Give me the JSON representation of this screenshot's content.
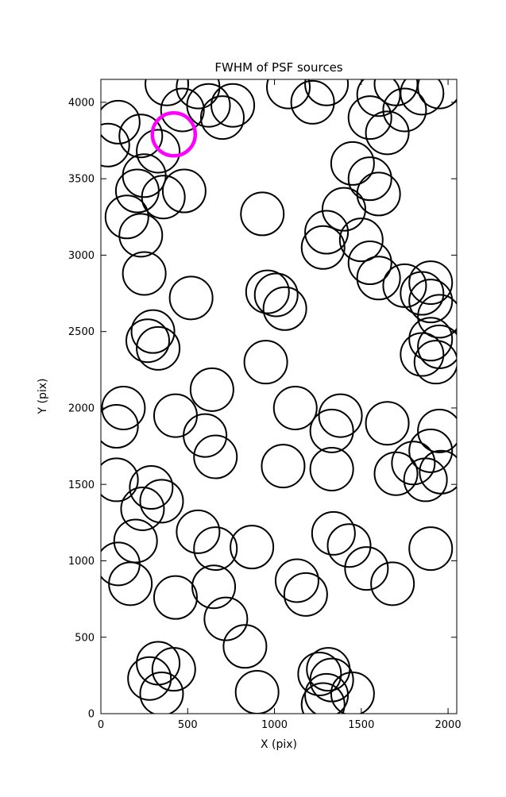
{
  "chart_data": {
    "type": "scatter",
    "title": "FWHM of PSF sources",
    "xlabel": "X (pix)",
    "ylabel": "Y (pix)",
    "xlim": [
      0,
      2050
    ],
    "ylim": [
      0,
      4150
    ],
    "xticks": [
      0,
      500,
      1000,
      1500,
      2000
    ],
    "yticks": [
      0,
      500,
      1000,
      1500,
      2000,
      2500,
      3000,
      3500,
      4000
    ],
    "grid": false,
    "legend": "none",
    "marker_shape": "open-circle",
    "marker_radius_px": 27,
    "marker_stroke_color": "#000000",
    "highlight_color": "#ff00ff",
    "points": [
      [
        380,
        4120
      ],
      [
        560,
        4100
      ],
      [
        620,
        3980
      ],
      [
        470,
        3950
      ],
      [
        700,
        3900
      ],
      [
        760,
        3980
      ],
      [
        100,
        3870
      ],
      [
        40,
        3720
      ],
      [
        230,
        3780
      ],
      [
        330,
        3680
      ],
      [
        250,
        3520
      ],
      [
        210,
        3420
      ],
      [
        360,
        3380
      ],
      [
        480,
        3420
      ],
      [
        150,
        3250
      ],
      [
        230,
        3130
      ],
      [
        930,
        3270
      ],
      [
        1080,
        4100
      ],
      [
        1220,
        4000
      ],
      [
        1300,
        4120
      ],
      [
        1600,
        4050
      ],
      [
        1700,
        4120
      ],
      [
        1550,
        3900
      ],
      [
        1750,
        3950
      ],
      [
        1850,
        4060
      ],
      [
        1950,
        4100
      ],
      [
        1650,
        3800
      ],
      [
        1450,
        3600
      ],
      [
        1550,
        3500
      ],
      [
        1600,
        3400
      ],
      [
        1400,
        3300
      ],
      [
        1300,
        3150
      ],
      [
        1280,
        3050
      ],
      [
        1500,
        3100
      ],
      [
        1550,
        2950
      ],
      [
        1600,
        2850
      ],
      [
        1750,
        2800
      ],
      [
        1850,
        2750
      ],
      [
        1900,
        2820
      ],
      [
        1900,
        2700
      ],
      [
        1950,
        2600
      ],
      [
        250,
        2880
      ],
      [
        520,
        2720
      ],
      [
        300,
        2500
      ],
      [
        270,
        2440
      ],
      [
        330,
        2390
      ],
      [
        960,
        2760
      ],
      [
        1010,
        2740
      ],
      [
        1060,
        2650
      ],
      [
        950,
        2300
      ],
      [
        1900,
        2450
      ],
      [
        1950,
        2400
      ],
      [
        1930,
        2300
      ],
      [
        1850,
        2350
      ],
      [
        640,
        2120
      ],
      [
        130,
        2000
      ],
      [
        90,
        1880
      ],
      [
        430,
        1950
      ],
      [
        600,
        1820
      ],
      [
        660,
        1680
      ],
      [
        1120,
        2000
      ],
      [
        1380,
        1950
      ],
      [
        1330,
        1850
      ],
      [
        1650,
        1900
      ],
      [
        1950,
        1850
      ],
      [
        1900,
        1720
      ],
      [
        1050,
        1620
      ],
      [
        1330,
        1600
      ],
      [
        1700,
        1570
      ],
      [
        1800,
        1640
      ],
      [
        1870,
        1530
      ],
      [
        1960,
        1580
      ],
      [
        90,
        1530
      ],
      [
        290,
        1480
      ],
      [
        350,
        1390
      ],
      [
        240,
        1340
      ],
      [
        200,
        1130
      ],
      [
        100,
        980
      ],
      [
        170,
        850
      ],
      [
        560,
        1190
      ],
      [
        660,
        1080
      ],
      [
        870,
        1090
      ],
      [
        650,
        830
      ],
      [
        430,
        760
      ],
      [
        720,
        620
      ],
      [
        1340,
        1180
      ],
      [
        1430,
        1100
      ],
      [
        1530,
        950
      ],
      [
        1900,
        1080
      ],
      [
        1680,
        850
      ],
      [
        1130,
        870
      ],
      [
        1180,
        780
      ],
      [
        830,
        440
      ],
      [
        330,
        330
      ],
      [
        420,
        290
      ],
      [
        280,
        230
      ],
      [
        350,
        130
      ],
      [
        900,
        140
      ],
      [
        1260,
        260
      ],
      [
        1310,
        290
      ],
      [
        1330,
        220
      ],
      [
        1300,
        120
      ],
      [
        1280,
        60
      ],
      [
        1450,
        130
      ]
    ],
    "highlight_point": [
      420,
      3790
    ]
  }
}
